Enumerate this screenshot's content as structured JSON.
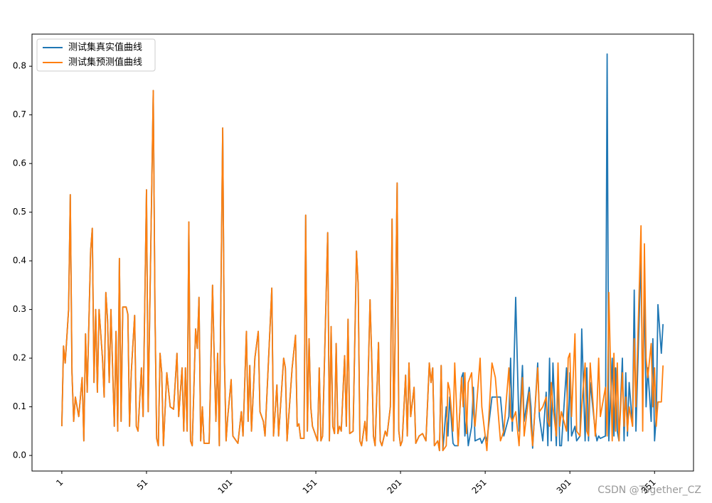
{
  "chart_data": {
    "type": "line",
    "x": [
      1,
      2,
      3,
      5,
      6,
      7,
      8,
      9,
      11,
      13,
      14,
      15,
      16,
      18,
      19,
      20,
      21,
      22,
      23,
      25,
      26,
      27,
      28,
      29,
      30,
      32,
      33,
      34,
      35,
      36,
      37,
      39,
      40,
      41,
      42,
      44,
      45,
      46,
      48,
      49,
      51,
      52,
      55,
      56,
      57,
      58,
      59,
      60,
      61,
      63,
      65,
      67,
      69,
      70,
      72,
      73,
      74,
      75,
      76,
      77,
      78,
      80,
      81,
      82,
      83,
      84,
      85,
      88,
      90,
      91,
      92,
      93,
      94,
      96,
      97,
      98,
      99,
      101,
      102,
      105,
      107,
      108,
      110,
      111,
      112,
      113,
      115,
      117,
      118,
      120,
      121,
      125,
      126,
      128,
      129,
      132,
      133,
      134,
      137,
      139,
      140,
      141,
      142,
      144,
      145,
      146,
      147,
      148,
      149,
      150,
      152,
      153,
      154,
      155,
      158,
      159,
      160,
      161,
      162,
      163,
      164,
      165,
      166,
      168,
      169,
      170,
      171,
      173,
      175,
      176,
      177,
      178,
      180,
      181,
      183,
      184,
      185,
      186,
      188,
      189,
      190,
      192,
      193,
      195,
      196,
      197,
      199,
      200,
      201,
      202,
      204,
      205,
      206,
      207,
      209,
      210,
      212,
      214,
      216,
      218,
      219,
      220,
      221,
      223,
      224,
      225,
      226,
      228,
      229,
      230,
      232,
      233,
      235,
      237,
      238,
      239,
      240,
      241,
      243,
      244,
      245,
      248,
      249,
      251,
      252,
      255,
      257,
      260,
      262,
      265,
      266,
      267,
      269,
      271,
      273,
      274,
      277,
      278,
      279,
      282,
      283,
      285,
      287,
      288,
      289,
      290,
      291,
      293,
      294,
      295,
      296,
      299,
      300,
      301,
      302,
      304,
      305,
      307,
      308,
      310,
      311,
      312,
      313,
      316,
      317,
      318,
      319,
      322,
      323,
      324,
      326,
      327,
      328,
      329,
      330,
      332,
      333,
      334,
      335,
      336,
      338,
      339,
      340,
      343,
      344,
      345,
      346,
      347,
      349,
      350,
      351,
      352,
      353,
      355,
      356
    ],
    "series": [
      {
        "name": "测试集真实值曲线",
        "color": "#1f77b4",
        "values": [
          0.06,
          0.225,
          0.19,
          0.3,
          0.536,
          0.17,
          0.07,
          0.12,
          0.08,
          0.16,
          0.03,
          0.25,
          0.13,
          0.42,
          0.467,
          0.15,
          0.3,
          0.13,
          0.3,
          0.2,
          0.12,
          0.335,
          0.28,
          0.15,
          0.3,
          0.06,
          0.255,
          0.05,
          0.405,
          0.07,
          0.305,
          0.305,
          0.29,
          0.06,
          0.17,
          0.288,
          0.06,
          0.05,
          0.18,
          0.08,
          0.546,
          0.09,
          0.75,
          0.3,
          0.035,
          0.02,
          0.21,
          0.17,
          0.02,
          0.17,
          0.1,
          0.095,
          0.21,
          0.08,
          0.18,
          0.05,
          0.18,
          0.05,
          0.48,
          0.03,
          0.02,
          0.26,
          0.22,
          0.325,
          0.03,
          0.1,
          0.025,
          0.025,
          0.35,
          0.2,
          0.07,
          0.21,
          0.02,
          0.673,
          0.2,
          0.03,
          0.08,
          0.156,
          0.04,
          0.025,
          0.09,
          0.04,
          0.255,
          0.07,
          0.185,
          0.05,
          0.2,
          0.255,
          0.09,
          0.07,
          0.04,
          0.344,
          0.04,
          0.145,
          0.04,
          0.2,
          0.18,
          0.03,
          0.18,
          0.247,
          0.06,
          0.065,
          0.035,
          0.035,
          0.494,
          0.05,
          0.24,
          0.1,
          0.06,
          0.05,
          0.03,
          0.18,
          0.03,
          0.04,
          0.458,
          0.03,
          0.265,
          0.06,
          0.045,
          0.23,
          0.045,
          0.06,
          0.05,
          0.205,
          0.06,
          0.28,
          0.045,
          0.05,
          0.42,
          0.35,
          0.03,
          0.02,
          0.07,
          0.03,
          0.32,
          0.2,
          0.04,
          0.02,
          0.232,
          0.03,
          0.02,
          0.05,
          0.04,
          0.1,
          0.486,
          0.03,
          0.56,
          0.05,
          0.02,
          0.03,
          0.165,
          0.04,
          0.19,
          0.08,
          0.14,
          0.025,
          0.04,
          0.045,
          0.03,
          0.19,
          0.15,
          0.18,
          0.02,
          0.03,
          0.01,
          0.185,
          0.01,
          0.1,
          0.04,
          0.12,
          0.025,
          0.02,
          0.02,
          0.16,
          0.17,
          0.04,
          0.08,
          0.02,
          0.06,
          0.14,
          0.03,
          0.035,
          0.025,
          0.04,
          0.03,
          0.12,
          0.12,
          0.12,
          0.04,
          0.08,
          0.2,
          0.05,
          0.325,
          0.05,
          0.185,
          0.07,
          0.14,
          0.1,
          0.015,
          0.19,
          0.08,
          0.03,
          0.13,
          0.02,
          0.2,
          0.03,
          0.19,
          0.02,
          0.17,
          0.02,
          0.02,
          0.18,
          0.03,
          0.17,
          0.04,
          0.06,
          0.03,
          0.04,
          0.26,
          0.03,
          0.18,
          0.03,
          0.15,
          0.05,
          0.03,
          0.04,
          0.035,
          0.04,
          0.825,
          0.03,
          0.2,
          0.04,
          0.18,
          0.05,
          0.03,
          0.2,
          0.03,
          0.17,
          0.04,
          0.15,
          0.06,
          0.34,
          0.05,
          0.41,
          0.1,
          0.35,
          0.1,
          0.18,
          0.07,
          0.24,
          0.03,
          0.08,
          0.31,
          0.21,
          0.27
        ]
      },
      {
        "name": "测试集预测值曲线",
        "color": "#ff7f0e",
        "values": [
          0.06,
          0.225,
          0.19,
          0.3,
          0.536,
          0.17,
          0.07,
          0.12,
          0.08,
          0.16,
          0.03,
          0.25,
          0.13,
          0.42,
          0.467,
          0.15,
          0.3,
          0.13,
          0.3,
          0.2,
          0.12,
          0.335,
          0.28,
          0.15,
          0.3,
          0.06,
          0.255,
          0.05,
          0.405,
          0.07,
          0.305,
          0.305,
          0.29,
          0.06,
          0.17,
          0.288,
          0.06,
          0.05,
          0.18,
          0.08,
          0.546,
          0.09,
          0.75,
          0.3,
          0.035,
          0.02,
          0.21,
          0.17,
          0.02,
          0.17,
          0.1,
          0.095,
          0.21,
          0.08,
          0.18,
          0.05,
          0.18,
          0.05,
          0.48,
          0.03,
          0.02,
          0.26,
          0.22,
          0.325,
          0.03,
          0.1,
          0.025,
          0.025,
          0.35,
          0.2,
          0.07,
          0.21,
          0.02,
          0.673,
          0.2,
          0.03,
          0.08,
          0.156,
          0.04,
          0.025,
          0.09,
          0.04,
          0.255,
          0.07,
          0.185,
          0.05,
          0.2,
          0.255,
          0.09,
          0.07,
          0.04,
          0.344,
          0.04,
          0.145,
          0.04,
          0.2,
          0.18,
          0.03,
          0.18,
          0.247,
          0.06,
          0.065,
          0.035,
          0.035,
          0.494,
          0.05,
          0.24,
          0.1,
          0.06,
          0.05,
          0.03,
          0.18,
          0.03,
          0.04,
          0.458,
          0.03,
          0.265,
          0.06,
          0.045,
          0.23,
          0.045,
          0.06,
          0.05,
          0.205,
          0.06,
          0.28,
          0.045,
          0.05,
          0.42,
          0.35,
          0.03,
          0.02,
          0.07,
          0.03,
          0.32,
          0.2,
          0.04,
          0.02,
          0.232,
          0.03,
          0.02,
          0.05,
          0.04,
          0.1,
          0.486,
          0.03,
          0.56,
          0.05,
          0.02,
          0.03,
          0.165,
          0.04,
          0.19,
          0.08,
          0.14,
          0.025,
          0.04,
          0.045,
          0.03,
          0.19,
          0.15,
          0.18,
          0.02,
          0.03,
          0.01,
          0.185,
          0.01,
          0.02,
          0.15,
          0.135,
          0.05,
          0.19,
          0.02,
          0.16,
          0.1,
          0.17,
          0.045,
          0.15,
          0.17,
          0.09,
          0.06,
          0.2,
          0.1,
          0.04,
          0.01,
          0.19,
          0.16,
          0.03,
          0.05,
          0.18,
          0.08,
          0.07,
          0.09,
          0.02,
          0.16,
          0.04,
          0.13,
          0.06,
          0.02,
          0.18,
          0.09,
          0.1,
          0.12,
          0.07,
          0.06,
          0.15,
          0.1,
          0.04,
          0.19,
          0.06,
          0.09,
          0.05,
          0.2,
          0.21,
          0.08,
          0.25,
          0.05,
          0.04,
          0.1,
          0.19,
          0.05,
          0.04,
          0.19,
          0.04,
          0.1,
          0.2,
          0.08,
          0.14,
          0.04,
          0.335,
          0.03,
          0.21,
          0.05,
          0.19,
          0.03,
          0.17,
          0.06,
          0.12,
          0.05,
          0.1,
          0.06,
          0.24,
          0.1,
          0.472,
          0.05,
          0.435,
          0.2,
          0.16,
          0.23,
          0.1,
          0.18,
          0.06,
          0.11,
          0.11,
          0.185
        ]
      }
    ],
    "xlim": [
      -16.6,
      374
    ],
    "xticks": [
      1,
      51,
      101,
      151,
      201,
      251,
      301,
      351
    ],
    "ylim": [
      -0.032,
      0.866
    ],
    "yticks": [
      {
        "value": 0,
        "label": "0.0"
      },
      0.1,
      0.2,
      0.3,
      0.4,
      0.5,
      0.6,
      0.7,
      0.8
    ],
    "legend": "upper left",
    "grid": false,
    "watermark": "CSDN @Together_CZ"
  }
}
